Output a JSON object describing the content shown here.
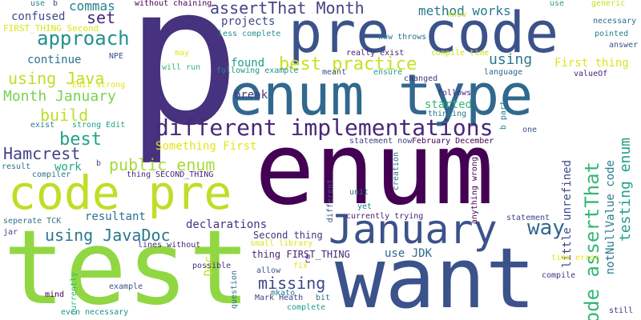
{
  "words": [
    {
      "text": "p",
      "color": "#46327e"
    },
    {
      "text": "enum",
      "color": "#440154"
    },
    {
      "text": "test",
      "color": "#90d743"
    },
    {
      "text": "want",
      "color": "#3b528b"
    },
    {
      "text": "pre code",
      "color": "#3b528b"
    },
    {
      "text": "enum type",
      "color": "#31688e"
    },
    {
      "text": "code pre",
      "color": "#bddf26"
    },
    {
      "text": "January",
      "color": "#3b528b"
    },
    {
      "text": "different implementations",
      "color": "#482878"
    },
    {
      "text": "approach",
      "color": "#21918c"
    },
    {
      "text": "assertThat Month",
      "color": "#414487"
    },
    {
      "text": "method works",
      "color": "#2a788e"
    },
    {
      "text": "best practice",
      "color": "#c8e020"
    },
    {
      "text": "using Java",
      "color": "#bddf26"
    },
    {
      "text": "Month January",
      "color": "#7ad151"
    },
    {
      "text": "build",
      "color": "#bddf26"
    },
    {
      "text": "best",
      "color": "#20a386"
    },
    {
      "text": "Hamcrest",
      "color": "#414487"
    },
    {
      "text": "public enum",
      "color": "#a5db36"
    },
    {
      "text": "using JavaDoc",
      "color": "#2a788e"
    },
    {
      "text": "missing",
      "color": "#3e4989"
    },
    {
      "text": "way",
      "color": "#31688e"
    },
    {
      "text": "code assertThat",
      "color": "#35b779"
    },
    {
      "text": "testing enum",
      "color": "#1f9e89"
    },
    {
      "text": "commas",
      "color": "#26828e"
    },
    {
      "text": "set",
      "color": "#482878"
    },
    {
      "text": "confused",
      "color": "#3e4989"
    },
    {
      "text": "projects",
      "color": "#3e4989"
    },
    {
      "text": "using",
      "color": "#2a788e"
    },
    {
      "text": "found",
      "color": "#1f9e89"
    },
    {
      "text": "continue",
      "color": "#2c728e"
    },
    {
      "text": "break",
      "color": "#443983"
    },
    {
      "text": "First thing",
      "color": "#dde318"
    },
    {
      "text": "started",
      "color": "#35b779"
    },
    {
      "text": "work",
      "color": "#22a884"
    },
    {
      "text": "resultant",
      "color": "#2c728e"
    },
    {
      "text": "declarations",
      "color": "#46327e"
    },
    {
      "text": "use JDK",
      "color": "#31688e"
    },
    {
      "text": "Doc",
      "color": "#bddf26"
    },
    {
      "text": "little unrefined",
      "color": "#3e4989"
    },
    {
      "text": "notNullValue code",
      "color": "#2a788e"
    },
    {
      "text": "Something First",
      "color": "#e5e419"
    },
    {
      "text": "Second thing",
      "color": "#46327e"
    },
    {
      "text": "thing FIRST_THING",
      "color": "#482878"
    },
    {
      "text": "FIRST_THING Second",
      "color": "#dde318"
    },
    {
      "text": "without chaining",
      "color": "#440154"
    },
    {
      "text": "less complete",
      "color": "#21918c"
    },
    {
      "text": "use",
      "color": "#26828e"
    },
    {
      "text": "use",
      "color": "#20a386"
    },
    {
      "text": "b",
      "color": "#3e4989"
    },
    {
      "text": "b",
      "color": "#3e4989"
    },
    {
      "text": "NPE",
      "color": "#3b528b"
    },
    {
      "text": "may",
      "color": "#e5e419"
    },
    {
      "text": "will run",
      "color": "#35b779"
    },
    {
      "text": "Edit strong",
      "color": "#e5e419"
    },
    {
      "text": "exist",
      "color": "#2a788e"
    },
    {
      "text": "strong Edit",
      "color": "#1fa187"
    },
    {
      "text": "following example",
      "color": "#21918c"
    },
    {
      "text": "meant",
      "color": "#3b528b"
    },
    {
      "text": "ensure",
      "color": "#1f9e89"
    },
    {
      "text": "really exist",
      "color": "#481f70"
    },
    {
      "text": "compile time",
      "color": "#cae11f"
    },
    {
      "text": "now throws",
      "color": "#2c728e"
    },
    {
      "text": "know",
      "color": "#b5de2b"
    },
    {
      "text": "generic",
      "color": "#c8e020"
    },
    {
      "text": "necessary",
      "color": "#31688e"
    },
    {
      "text": "pointed",
      "color": "#26828e"
    },
    {
      "text": "answer",
      "color": "#3b528b"
    },
    {
      "text": "valueOf",
      "color": "#481f70"
    },
    {
      "text": "language",
      "color": "#31688e"
    },
    {
      "text": "changed",
      "color": "#46327e"
    },
    {
      "text": "follows",
      "color": "#482878"
    },
    {
      "text": "thinking",
      "color": "#2a788e"
    },
    {
      "text": "b part",
      "color": "#26828e"
    },
    {
      "text": "one",
      "color": "#3b528b"
    },
    {
      "text": "statement now",
      "color": "#414487"
    },
    {
      "text": "February December",
      "color": "#440154"
    },
    {
      "text": "creation",
      "color": "#2c728e"
    },
    {
      "text": "anything wrong",
      "color": "#440154"
    },
    {
      "text": "unit",
      "color": "#2c728e"
    },
    {
      "text": "yet",
      "color": "#26828e"
    },
    {
      "text": "different",
      "color": "#3b528b"
    },
    {
      "text": "currently trying",
      "color": "#481f70"
    },
    {
      "text": "statement",
      "color": "#414487"
    },
    {
      "text": "compiler",
      "color": "#2c728e"
    },
    {
      "text": "result",
      "color": "#2a788e"
    },
    {
      "text": "thing SECOND_THING",
      "color": "#482878"
    },
    {
      "text": "possible",
      "color": "#46327e"
    },
    {
      "text": "seperate TCK",
      "color": "#2c728e"
    },
    {
      "text": "jar",
      "color": "#414487"
    },
    {
      "text": "lines without",
      "color": "#482878"
    },
    {
      "text": "small library",
      "color": "#dde318"
    },
    {
      "text": "re",
      "color": "#481f70"
    },
    {
      "text": "fix",
      "color": "#e5e419"
    },
    {
      "text": "allow",
      "color": "#3b528b"
    },
    {
      "text": "question",
      "color": "#2c728e"
    },
    {
      "text": "Mark Heath",
      "color": "#414487"
    },
    {
      "text": "mkato",
      "color": "#2a788e"
    },
    {
      "text": "bit",
      "color": "#2c728e"
    },
    {
      "text": "complete",
      "color": "#1f9e89"
    },
    {
      "text": "example",
      "color": "#3b528b"
    },
    {
      "text": "mind",
      "color": "#440154"
    },
    {
      "text": "currently",
      "color": "#35b779"
    },
    {
      "text": "even necessary",
      "color": "#21918c"
    },
    {
      "text": "compile",
      "color": "#46327e"
    },
    {
      "text": "time error",
      "color": "#e5e419"
    },
    {
      "text": "still",
      "color": "#46327e"
    }
  ]
}
